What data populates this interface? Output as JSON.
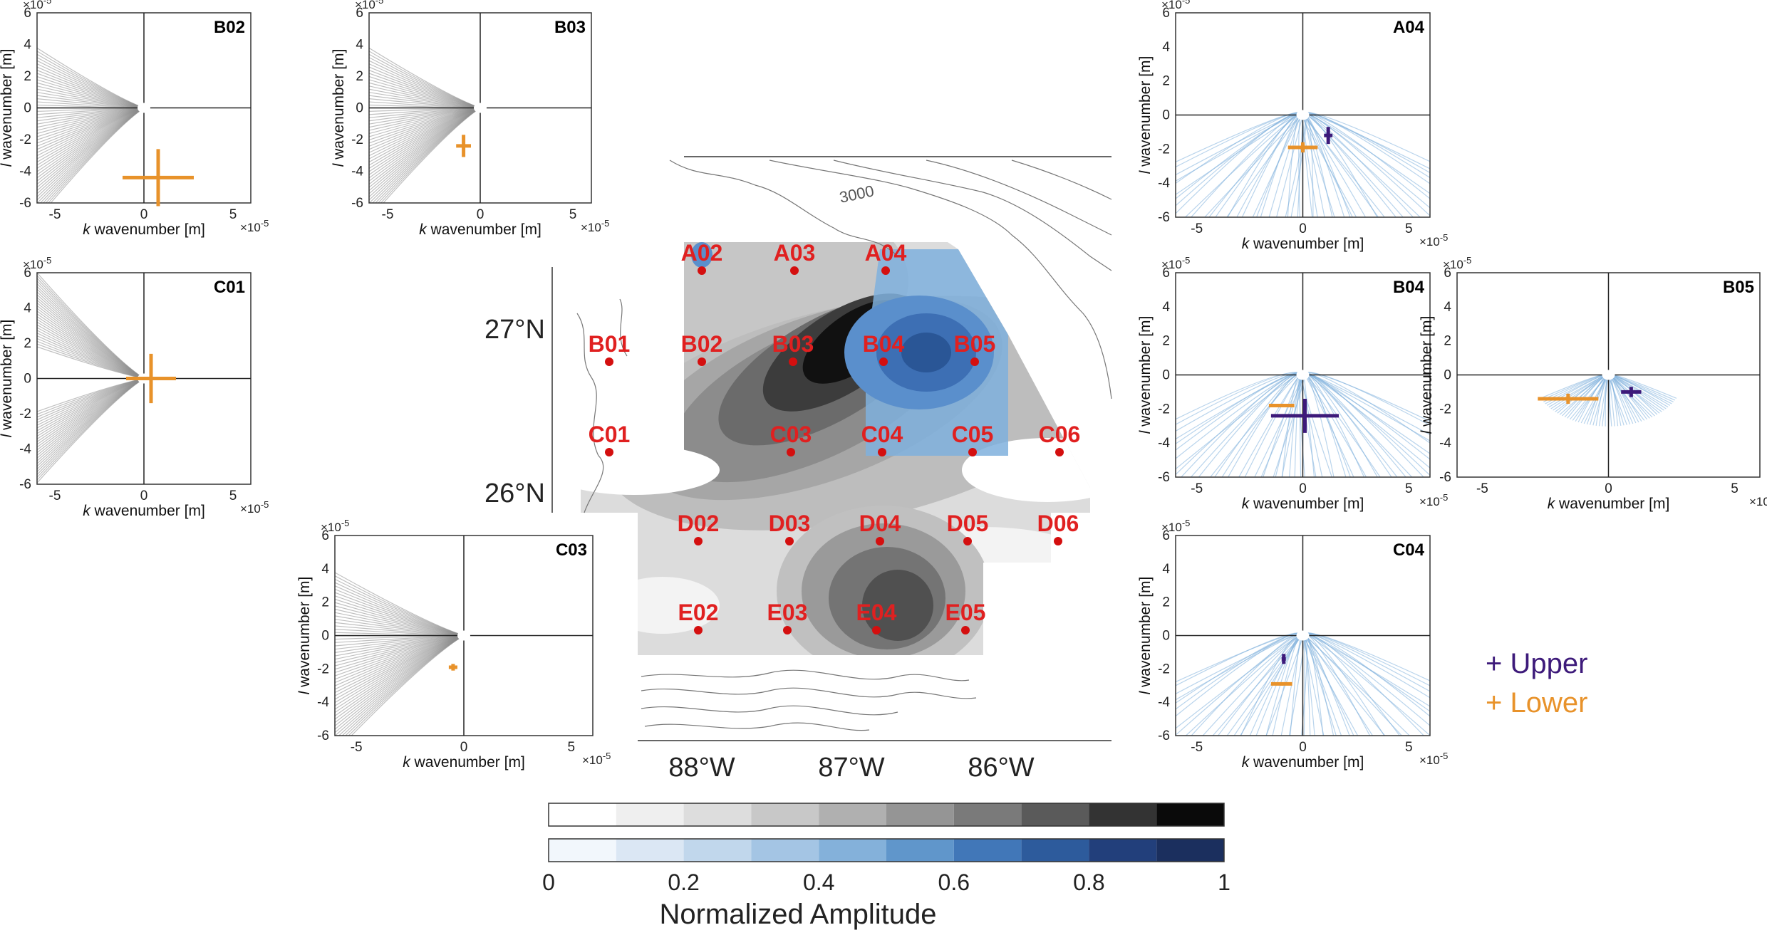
{
  "colors": {
    "gray_fan": "#8c8c8c",
    "blue_fan": "#7fb0dd",
    "upper": "#3d1a7a",
    "lower": "#e8922a",
    "station": "#d40f0f",
    "station_label": "#e02020"
  },
  "panels": [
    {
      "id": "B02",
      "fan": "gray",
      "rays": "both",
      "lower": {
        "k": 0.8,
        "l": -4.4,
        "dk": 2.0,
        "dl": 1.8
      }
    },
    {
      "id": "B03",
      "fan": "gray",
      "rays": "both",
      "lower": {
        "k": -0.9,
        "l": -2.4,
        "dk": 0.4,
        "dl": 0.7
      }
    },
    {
      "id": "C01",
      "fan": "gray",
      "rays": "both",
      "lower": {
        "k": 0.4,
        "l": 0.0,
        "dk": 1.4,
        "dl": 1.4
      }
    },
    {
      "id": "C03",
      "fan": "gray",
      "rays": "both",
      "lower": {
        "k": -0.5,
        "l": -1.9,
        "dk": 0.2,
        "dl": 0.2
      }
    },
    {
      "id": "A04",
      "fan": "blue",
      "rays": "both",
      "upper": {
        "k": 1.2,
        "l": -1.2,
        "dk": 0.2,
        "dl": 0.5
      },
      "lower": {
        "k": 0.0,
        "l": -1.9,
        "dk": 0.7,
        "dl": 0.3
      }
    },
    {
      "id": "B04",
      "fan": "blue",
      "rays": "both",
      "upper": {
        "k": 0.1,
        "l": -2.4,
        "dk": 1.6,
        "dl": 1.0
      },
      "lower": {
        "k": -1.0,
        "l": -1.8,
        "dk": 0.6,
        "dl": 0.1
      }
    },
    {
      "id": "B05",
      "fan": "blue",
      "rays": "small",
      "upper": {
        "k": 0.9,
        "l": -1.0,
        "dk": 0.4,
        "dl": 0.3
      },
      "lower": {
        "k": -1.6,
        "l": -1.4,
        "dk": 1.2,
        "dl": 0.3
      }
    },
    {
      "id": "C04",
      "fan": "blue",
      "rays": "both",
      "upper": {
        "k": -0.9,
        "l": -1.4,
        "dk": 0.1,
        "dl": 0.3
      },
      "lower": {
        "k": -1.0,
        "l": -2.9,
        "dk": 0.5,
        "dl": 0.1
      }
    }
  ],
  "axes_common": {
    "xlabel_k": "k",
    "xlabel_rest": " wavenumber [m]",
    "ylabel_l": "l",
    "ylabel_rest": " wavenumber [m]",
    "multiplier": "×10",
    "multiplier_exp": "-5",
    "x_ticks": [
      "-5",
      "0",
      "5"
    ],
    "y_ticks": [
      "6",
      "4",
      "2",
      "0",
      "-2",
      "-4",
      "-6"
    ]
  },
  "map": {
    "stations": [
      {
        "name": "A02"
      },
      {
        "name": "A03"
      },
      {
        "name": "A04"
      },
      {
        "name": "B01"
      },
      {
        "name": "B02"
      },
      {
        "name": "B03"
      },
      {
        "name": "B04"
      },
      {
        "name": "B05"
      },
      {
        "name": "C01"
      },
      {
        "name": "C03"
      },
      {
        "name": "C04"
      },
      {
        "name": "C05"
      },
      {
        "name": "C06"
      },
      {
        "name": "D02"
      },
      {
        "name": "D03"
      },
      {
        "name": "D04"
      },
      {
        "name": "D05"
      },
      {
        "name": "D06"
      },
      {
        "name": "E02"
      },
      {
        "name": "E03"
      },
      {
        "name": "E04"
      },
      {
        "name": "E05"
      }
    ],
    "lat_labels": [
      "27°N",
      "26°N"
    ],
    "lon_labels": [
      "88°W",
      "87°W",
      "86°W"
    ],
    "contour_label": "3000"
  },
  "legend": {
    "upper": "+ Upper",
    "lower": "+ Lower"
  },
  "colorbar": {
    "ticks": [
      "0",
      "0.2",
      "0.4",
      "0.6",
      "0.8",
      "1"
    ],
    "label": "Normalized Amplitude",
    "gray_colors": [
      "#ffffff",
      "#efefef",
      "#dddddd",
      "#c8c8c8",
      "#b0b0b0",
      "#959595",
      "#7a7a7a",
      "#5a5a5a",
      "#333333",
      "#0a0a0a"
    ],
    "blue_colors": [
      "#f2f7fc",
      "#dbe7f4",
      "#c1d7ec",
      "#a4c5e4",
      "#84b1da",
      "#6096cb",
      "#4177b8",
      "#2d5b9c",
      "#223f7b",
      "#1b2f5e"
    ]
  }
}
